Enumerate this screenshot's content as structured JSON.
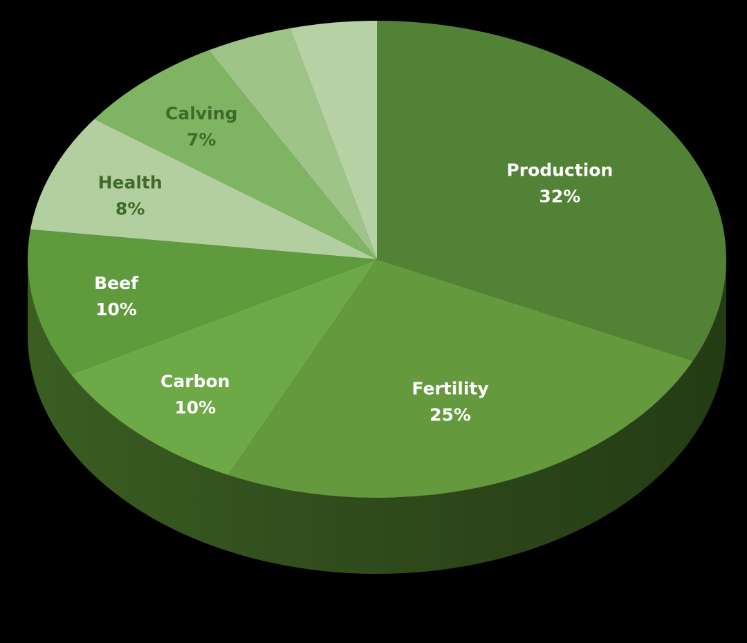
{
  "chart_data": {
    "type": "pie",
    "title": "",
    "slices": [
      {
        "label": "Production",
        "value": 32,
        "value_label": "32%",
        "color": "#528235",
        "label_color": "#ffffff"
      },
      {
        "label": "Fertility",
        "value": 25,
        "value_label": "25%",
        "color": "#64993e",
        "label_color": "#ffffff"
      },
      {
        "label": "Carbon",
        "value": 10,
        "value_label": "10%",
        "color": "#6da946",
        "label_color": "#ffffff"
      },
      {
        "label": "Beef",
        "value": 10,
        "value_label": "10%",
        "color": "#5f9a3c",
        "label_color": "#ffffff"
      },
      {
        "label": "Health",
        "value": 8,
        "value_label": "8%",
        "color": "#b2cfa0",
        "label_color": "#3f6a28"
      },
      {
        "label": "Calving",
        "value": 7,
        "value_label": "7%",
        "color": "#7fb562",
        "label_color": "#3f6a28"
      },
      {
        "label": "",
        "value": 4,
        "value_label": "",
        "color": "#9fc488",
        "label_color": "#3f6a28"
      },
      {
        "label": "",
        "value": 4,
        "value_label": "",
        "color": "#b6d2a5",
        "label_color": "#3f6a28"
      }
    ],
    "start": "12 o'clock",
    "direction": "clockwise",
    "style": "3d-tilted",
    "legend": "none"
  }
}
